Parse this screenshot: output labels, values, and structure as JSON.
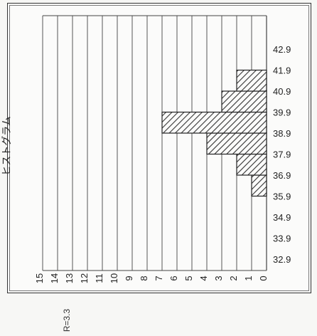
{
  "side_label": "ヒストグラム",
  "r_label": "R=3.3",
  "chart_data": {
    "type": "bar",
    "orientation": "horizontal",
    "bar_direction": "right-to-left",
    "categories": [
      "32.9",
      "33.9",
      "34.9",
      "35.9",
      "36.9",
      "37.9",
      "38.9",
      "39.9",
      "40.9",
      "41.9",
      "42.9"
    ],
    "values": [
      0,
      0,
      0,
      1,
      2,
      4,
      7,
      3,
      2,
      0,
      0
    ],
    "x_ticks": [
      "15",
      "14",
      "13",
      "12",
      "11",
      "10",
      "9",
      "8",
      "7",
      "6",
      "5",
      "4",
      "3",
      "2",
      "1",
      "0"
    ],
    "xlim": [
      0,
      15
    ],
    "grid": true,
    "bar_fill": "diagonal-hatch",
    "colors": {
      "line": "#333333",
      "hatch": "#333333",
      "background": "#fbfbfa"
    }
  }
}
